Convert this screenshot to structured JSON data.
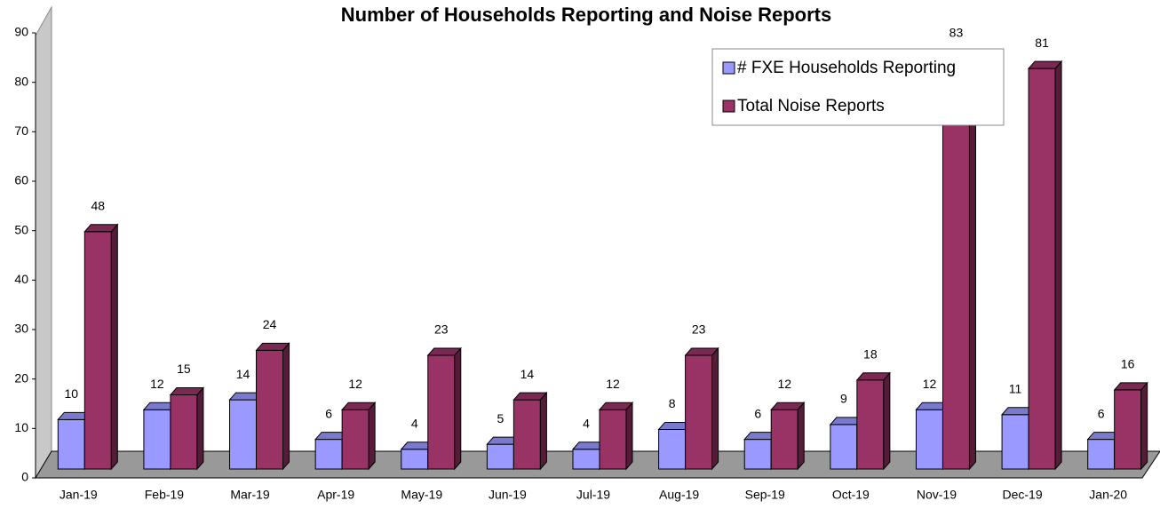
{
  "chart_data": {
    "type": "bar3d",
    "title": "Number of Households Reporting and Noise Reports",
    "categories": [
      "Jan-19",
      "Feb-19",
      "Mar-19",
      "Apr-19",
      "May-19",
      "Jun-19",
      "Jul-19",
      "Aug-19",
      "Sep-19",
      "Oct-19",
      "Nov-19",
      "Dec-19",
      "Jan-20"
    ],
    "series": [
      {
        "name": "# FXE Households Reporting",
        "color": "#9999ff",
        "values": [
          10,
          12,
          14,
          6,
          4,
          5,
          4,
          8,
          6,
          9,
          12,
          11,
          6
        ]
      },
      {
        "name": "Total Noise Reports",
        "color": "#993366",
        "values": [
          48,
          15,
          24,
          12,
          23,
          14,
          12,
          23,
          12,
          18,
          83,
          81,
          16
        ]
      }
    ],
    "ylim": [
      0,
      90
    ],
    "yticks": [
      0,
      10,
      20,
      30,
      40,
      50,
      60,
      70,
      80,
      90
    ]
  }
}
